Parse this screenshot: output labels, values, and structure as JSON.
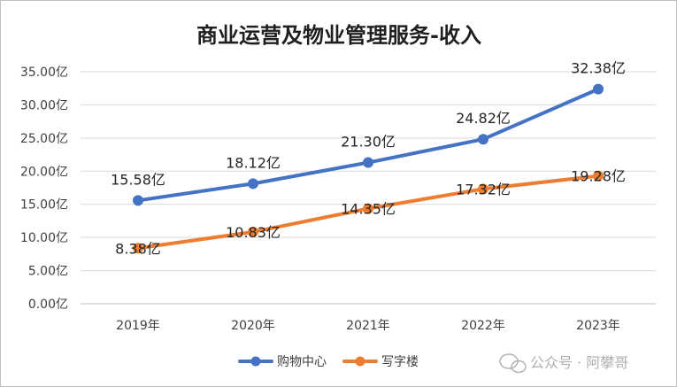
{
  "chart_data": {
    "type": "line",
    "title": "商业运营及物业管理服务-收入",
    "xlabel": "",
    "ylabel": "",
    "categories": [
      "2019年",
      "2020年",
      "2021年",
      "2022年",
      "2023年"
    ],
    "ylim": [
      0,
      35
    ],
    "yticks": [
      "0.00亿",
      "5.00亿",
      "10.00亿",
      "15.00亿",
      "20.00亿",
      "25.00亿",
      "30.00亿",
      "35.00亿"
    ],
    "grid": true,
    "legend_position": "bottom",
    "series": [
      {
        "name": "购物中心",
        "color": "#4472c4",
        "values": [
          15.58,
          18.12,
          21.3,
          24.82,
          32.38
        ],
        "labels": [
          "15.58亿",
          "18.12亿",
          "21.30亿",
          "24.82亿",
          "32.38亿"
        ]
      },
      {
        "name": "写字楼",
        "color": "#ed7d31",
        "values": [
          8.38,
          10.83,
          14.35,
          17.32,
          19.28
        ],
        "labels": [
          "8.38亿",
          "10.83亿",
          "14.35亿",
          "17.32亿",
          "19.28亿"
        ]
      }
    ]
  },
  "watermark": {
    "icon": "wechat-icon",
    "text": "公众号 · 阿攀哥"
  }
}
